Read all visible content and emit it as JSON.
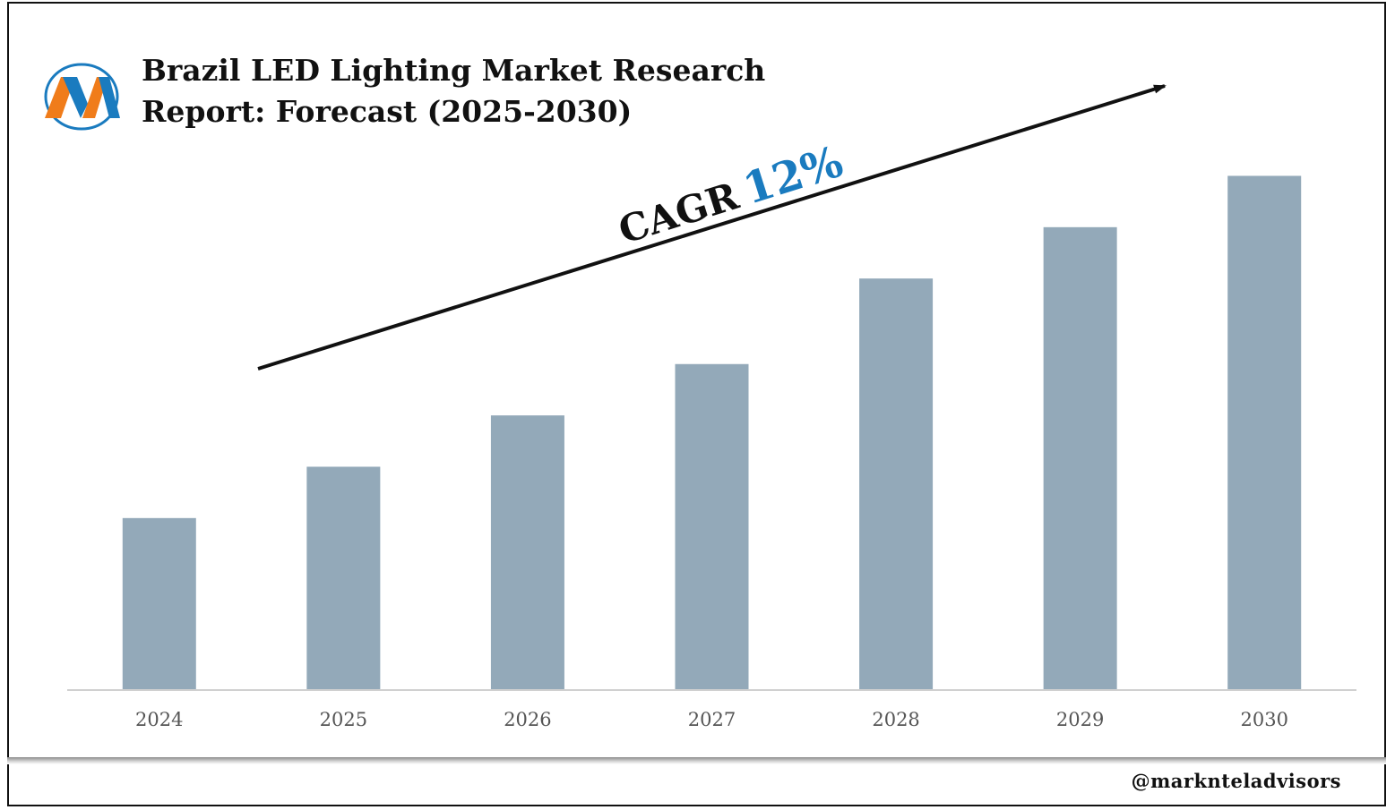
{
  "header": {
    "title_line1": "Brazil LED Lighting Market Research",
    "title_line2": "Report: Forecast (2025-2030)"
  },
  "logo": {
    "icon": "marknteladvisors-m-logo-icon"
  },
  "annotation": {
    "label": "CAGR",
    "value": "12%"
  },
  "footer": {
    "watermark": "@marknteladvisors"
  },
  "colors": {
    "bar": "#93a9b9",
    "accent": "#1a7bbf",
    "axis": "#d0d0d0"
  },
  "chart_data": {
    "type": "bar",
    "title": "Brazil LED Lighting Market Research Report: Forecast (2025-2030)",
    "categories": [
      "2024",
      "2025",
      "2026",
      "2027",
      "2028",
      "2029",
      "2030"
    ],
    "values": [
      1.0,
      1.3,
      1.6,
      1.9,
      2.4,
      2.7,
      3.0
    ],
    "ylim": [
      0,
      3.4
    ],
    "xlabel": "",
    "ylabel": "",
    "grid": false,
    "legend": "none"
  }
}
